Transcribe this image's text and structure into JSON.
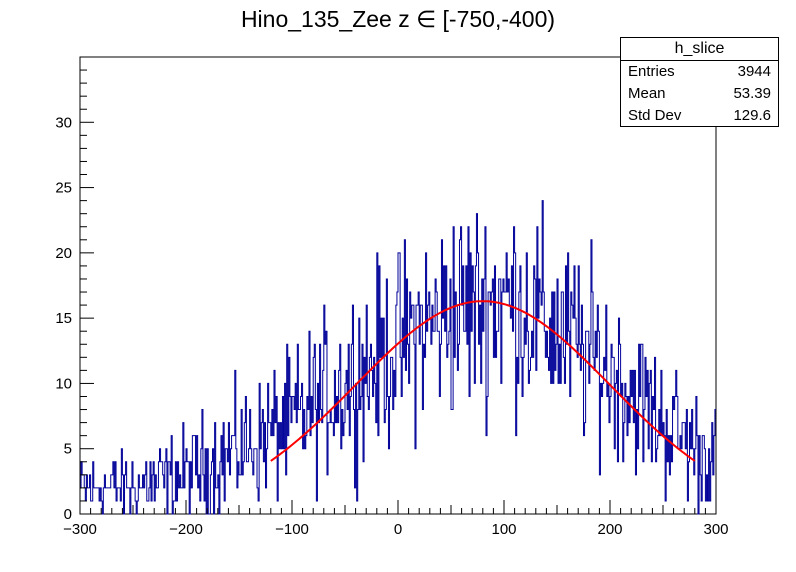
{
  "chart_data": {
    "type": "histogram",
    "title": "Hino_135_Zee z  ∈ [-750,-400)",
    "xlim": [
      -300,
      300
    ],
    "ylim": [
      0,
      35
    ],
    "x_ticks": [
      -300,
      -200,
      -100,
      0,
      100,
      200,
      300
    ],
    "y_ticks": [
      0,
      5,
      10,
      15,
      20,
      25,
      30
    ],
    "bins": 600,
    "histogram_color": "#000099",
    "fit_color": "#ff0000",
    "fit": {
      "type": "gaussian",
      "x_range": [
        -120,
        280
      ],
      "amplitude": 16.3,
      "mean": 80,
      "sigma": 120
    },
    "series": [
      {
        "name": "h_slice",
        "profile_points": [
          {
            "x": -300,
            "y": 2
          },
          {
            "x": -250,
            "y": 2
          },
          {
            "x": -200,
            "y": 3
          },
          {
            "x": -150,
            "y": 5
          },
          {
            "x": -100,
            "y": 7
          },
          {
            "x": -50,
            "y": 10
          },
          {
            "x": 0,
            "y": 13
          },
          {
            "x": 50,
            "y": 15.5
          },
          {
            "x": 100,
            "y": 16.5
          },
          {
            "x": 150,
            "y": 14
          },
          {
            "x": 200,
            "y": 11
          },
          {
            "x": 250,
            "y": 7
          },
          {
            "x": 300,
            "y": 4
          }
        ]
      }
    ],
    "legend_placement": "top-right",
    "grid": false
  },
  "stats": {
    "name": "h_slice",
    "rows": [
      {
        "label": "Entries",
        "value": "3944"
      },
      {
        "label": "Mean",
        "value": "53.39"
      },
      {
        "label": "Std Dev",
        "value": "129.6"
      }
    ]
  }
}
